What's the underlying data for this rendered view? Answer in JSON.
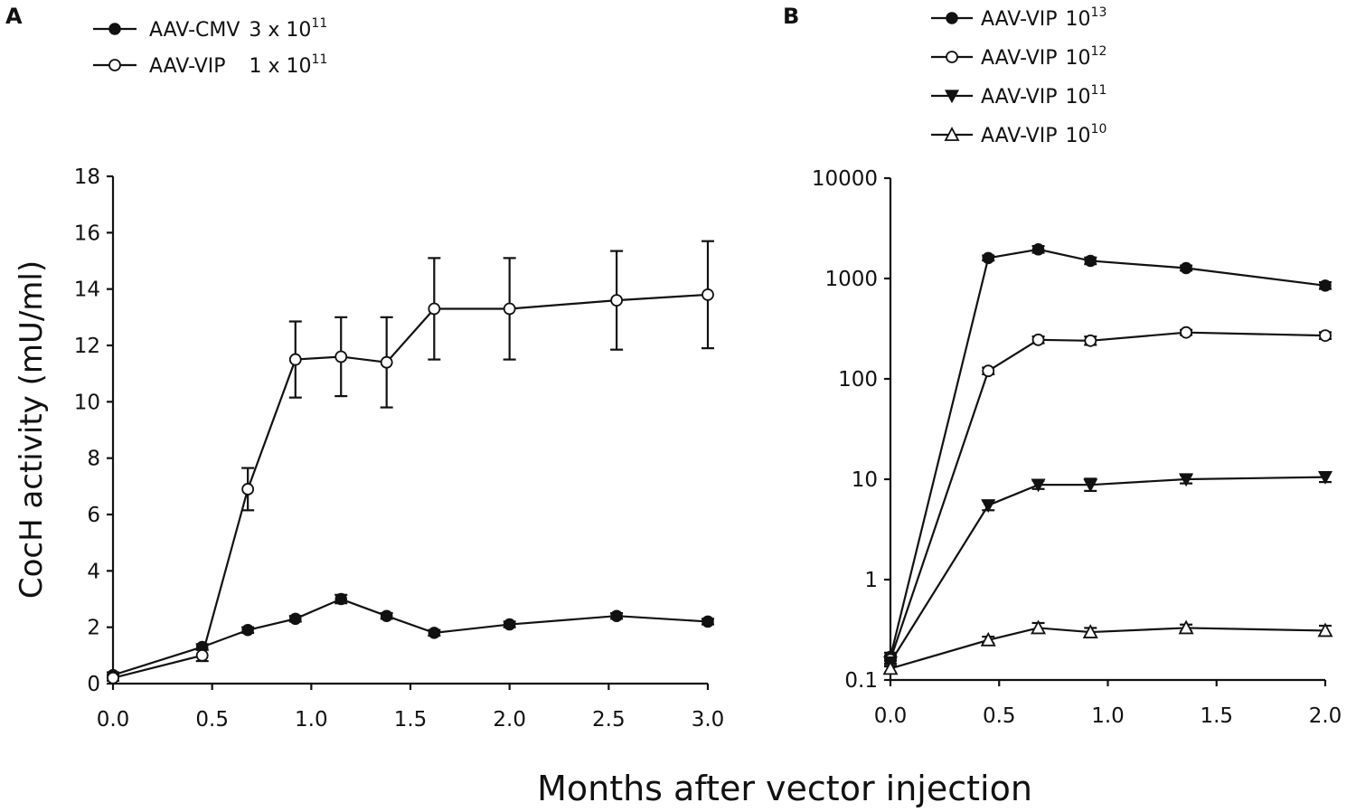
{
  "figure": {
    "x_axis_title": "Months after vector injection"
  },
  "chart_data": [
    {
      "panel": "A",
      "type": "line",
      "ylabel": "CocH activity (mU/ml)",
      "xlabel": "",
      "yscale": "linear",
      "xlim": [
        0,
        3
      ],
      "ylim": [
        0,
        18
      ],
      "x_ticks": [
        0,
        0.5,
        1,
        1.5,
        2,
        2.5,
        3
      ],
      "x_tick_labels": [
        "0.0",
        "0.5",
        "1.0",
        "1.5",
        "2.0",
        "2.5",
        "3.0"
      ],
      "y_ticks": [
        0,
        2,
        4,
        6,
        8,
        10,
        12,
        14,
        16,
        18
      ],
      "y_tick_labels": [
        "0",
        "2",
        "4",
        "6",
        "8",
        "10",
        "12",
        "14",
        "16",
        "18"
      ],
      "series": [
        {
          "name": "AAV-CMV",
          "dose": "3 x 10",
          "exp": "11",
          "marker": "filled-circle",
          "x": [
            0,
            0.45,
            0.68,
            0.92,
            1.15,
            1.38,
            1.62,
            2.0,
            2.54,
            3.0
          ],
          "y": [
            0.3,
            1.3,
            1.9,
            2.3,
            3.0,
            2.4,
            1.8,
            2.1,
            2.4,
            2.2
          ],
          "err": [
            0.1,
            0.1,
            0.1,
            0.1,
            0.15,
            0.1,
            0.1,
            0.1,
            0.1,
            0.1
          ]
        },
        {
          "name": "AAV-VIP",
          "dose": "1 x 10",
          "exp": "11",
          "marker": "open-circle",
          "x": [
            0,
            0.45,
            0.68,
            0.92,
            1.15,
            1.38,
            1.62,
            2.0,
            2.54,
            3.0
          ],
          "y": [
            0.2,
            1.0,
            6.9,
            11.5,
            11.6,
            11.4,
            13.3,
            13.3,
            13.6,
            13.8
          ],
          "err": [
            0.1,
            0.2,
            0.75,
            1.35,
            1.4,
            1.6,
            1.8,
            1.8,
            1.75,
            1.9
          ]
        }
      ]
    },
    {
      "panel": "B",
      "type": "line",
      "ylabel": "",
      "xlabel": "",
      "yscale": "log",
      "xlim": [
        0,
        2
      ],
      "ylim": [
        0.1,
        10000
      ],
      "x_ticks": [
        0,
        0.5,
        1,
        1.5,
        2
      ],
      "x_tick_labels": [
        "0.0",
        "0.5",
        "1.0",
        "1.5",
        "2.0"
      ],
      "y_ticks": [
        0.1,
        1,
        10,
        100,
        1000,
        10000
      ],
      "y_tick_labels": [
        "0.1",
        "1",
        "10",
        "100",
        "1000",
        "10000"
      ],
      "series": [
        {
          "name": "AAV-VIP",
          "dose": "10",
          "exp": "13",
          "marker": "filled-circle",
          "x": [
            0,
            0.45,
            0.68,
            0.92,
            1.36,
            2.0
          ],
          "y": [
            0.17,
            1600,
            1950,
            1500,
            1270,
            850
          ],
          "err_factor": [
            1.1,
            1.06,
            1.08,
            1.08,
            1.06,
            1.08
          ]
        },
        {
          "name": "AAV-VIP",
          "dose": "10",
          "exp": "12",
          "marker": "open-circle",
          "x": [
            0,
            0.45,
            0.68,
            0.92,
            1.36,
            2.0
          ],
          "y": [
            0.16,
            120,
            245,
            240,
            290,
            270
          ],
          "err_factor": [
            1.1,
            1.08,
            1.08,
            1.1,
            1.06,
            1.08
          ]
        },
        {
          "name": "AAV-VIP",
          "dose": "10",
          "exp": "11",
          "marker": "filled-triangle-down",
          "x": [
            0,
            0.45,
            0.68,
            0.92,
            1.36,
            2.0
          ],
          "y": [
            0.15,
            5.5,
            8.8,
            8.8,
            10.0,
            10.5
          ],
          "err_factor": [
            1.1,
            1.12,
            1.1,
            1.15,
            1.1,
            1.12
          ]
        },
        {
          "name": "AAV-VIP",
          "dose": "10",
          "exp": "10",
          "marker": "open-triangle-up",
          "x": [
            0,
            0.45,
            0.68,
            0.92,
            1.36,
            2.0
          ],
          "y": [
            0.13,
            0.25,
            0.33,
            0.3,
            0.33,
            0.31
          ],
          "err_factor": [
            1.1,
            1.08,
            1.12,
            1.1,
            1.08,
            1.12
          ]
        }
      ]
    }
  ]
}
